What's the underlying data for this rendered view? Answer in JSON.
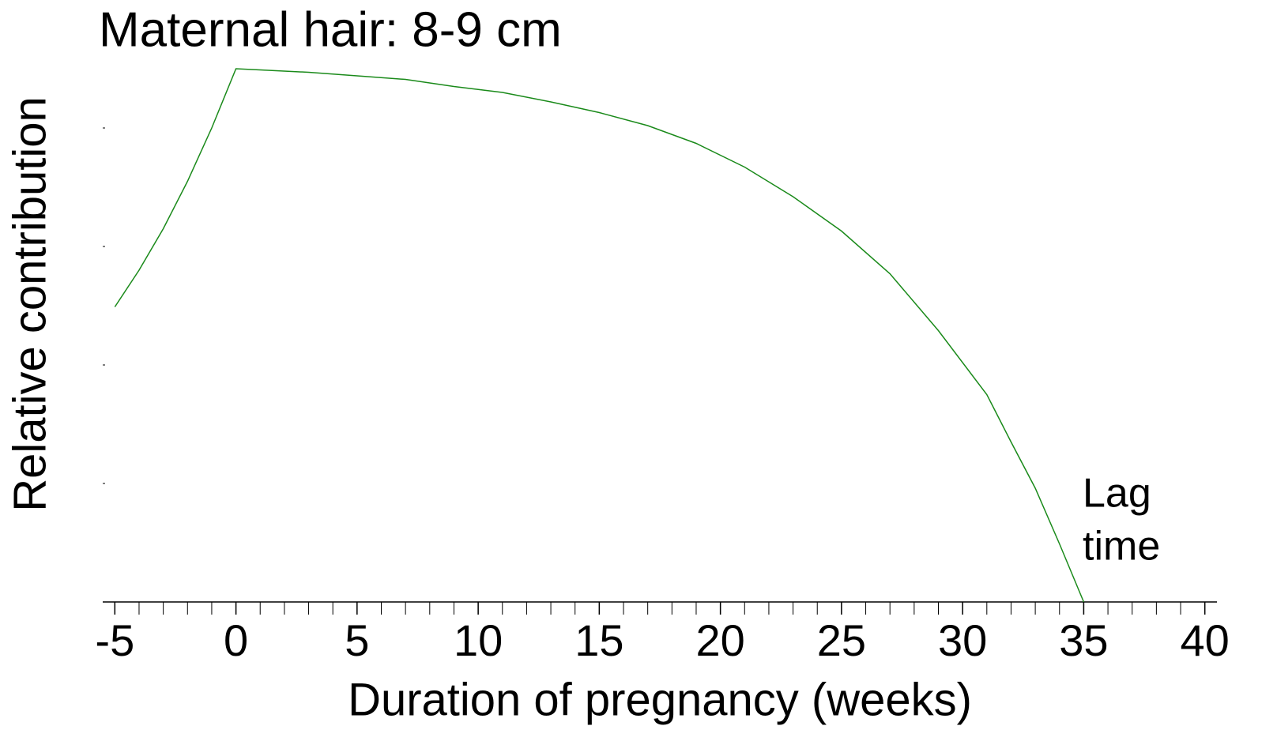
{
  "chart_data": {
    "type": "line",
    "title": "Maternal hair: 8-9 cm",
    "x_label": "Duration of pregnancy (weeks)",
    "y_label": "Relative contribution",
    "annotations": [
      "Lag",
      "time"
    ],
    "x": [
      -5,
      -4,
      -3,
      -2,
      -1,
      0,
      1,
      3,
      5,
      7,
      9,
      11,
      13,
      15,
      17,
      19,
      21,
      23,
      25,
      27,
      29,
      31,
      32,
      33,
      34,
      35
    ],
    "series": [
      {
        "name": "Maternal hair: 8-9 cm",
        "color": "#1a8a1a",
        "values": [
          2.49,
          2.8,
          3.15,
          3.55,
          4.0,
          4.5,
          4.49,
          4.47,
          4.44,
          4.41,
          4.35,
          4.3,
          4.22,
          4.13,
          4.02,
          3.87,
          3.67,
          3.42,
          3.13,
          2.77,
          2.29,
          1.75,
          1.35,
          0.96,
          0.49,
          0
        ]
      }
    ],
    "xlim": [
      -5.5,
      40.5
    ],
    "xticks": [
      -5,
      0,
      5,
      10,
      15,
      20,
      25,
      30,
      35,
      40
    ],
    "ylim": [
      0,
      4.5
    ],
    "yticks": [
      0,
      1,
      2,
      3,
      4
    ],
    "title_color": "#128a12"
  }
}
